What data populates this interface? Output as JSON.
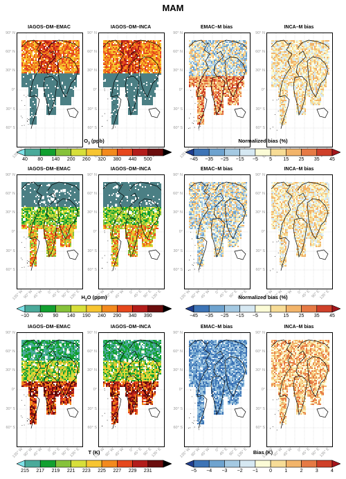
{
  "title": "MAM",
  "panel_titles": [
    "IAGOS–DM–EMAC",
    "IAGOS–DM–INCA",
    "EMAC–M bias",
    "INCA–M bias"
  ],
  "lat_labels": [
    "90° N",
    "60° N",
    "30° N",
    "0°",
    "30° S",
    "60° S"
  ],
  "lon_labels": [
    "135° W",
    "90° W",
    "45° W",
    "0°",
    "45° E",
    "90° E",
    "135° E"
  ],
  "rows": [
    {
      "variable": "O3",
      "abs_colorbar": {
        "label_main": "O",
        "label_sub": "3",
        "label_rest": " (ppb)",
        "ticks": [
          "40",
          "80",
          "140",
          "200",
          "260",
          "320",
          "380",
          "440",
          "500"
        ]
      },
      "bias_colorbar": {
        "label": "Normalized bias (%)",
        "ticks": [
          "−45",
          "−35",
          "−25",
          "−15",
          "−5",
          "5",
          "15",
          "25",
          "35",
          "45"
        ]
      }
    },
    {
      "variable": "H2O",
      "abs_colorbar": {
        "label_main": "H",
        "label_sub": "2",
        "label_rest": "O (ppm)",
        "ticks": [
          "−10",
          "40",
          "90",
          "140",
          "190",
          "240",
          "290",
          "340",
          "390"
        ]
      },
      "bias_colorbar": {
        "label": "Normalized bias (%)",
        "ticks": [
          "−45",
          "−35",
          "−25",
          "−15",
          "−5",
          "5",
          "15",
          "25",
          "35",
          "45"
        ]
      }
    },
    {
      "variable": "T",
      "abs_colorbar": {
        "label_main": "T (K)",
        "label_sub": "",
        "label_rest": "",
        "ticks": [
          "215",
          "217",
          "219",
          "221",
          "223",
          "225",
          "227",
          "229",
          "231"
        ]
      },
      "bias_colorbar": {
        "label": "Bias (K)",
        "ticks": [
          "−5",
          "−4",
          "−3",
          "−2",
          "−1",
          "0",
          "1",
          "2",
          "3",
          "4"
        ]
      }
    }
  ],
  "colors": {
    "abs_scale": [
      "#7fe3ea",
      "#4aaa9a",
      "#12a030",
      "#86c23a",
      "#d7df3a",
      "#f7c531",
      "#f38a1e",
      "#e6471c",
      "#b31d1a",
      "#6b0d0d",
      "#000000"
    ],
    "bias_scale": [
      "#1f3e8f",
      "#3d74b6",
      "#6ea3cf",
      "#a4c9e2",
      "#d6e8f2",
      "#fbfbd6",
      "#f7dc96",
      "#f2b46a",
      "#e67a45",
      "#cf4029",
      "#a4161c"
    ],
    "map_teal": "#4b7f84"
  }
}
